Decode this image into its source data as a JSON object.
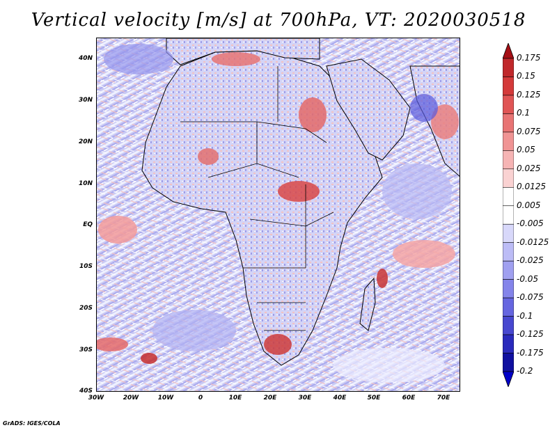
{
  "title": "Vertical velocity [m/s] at 700hPa, VT: 2020030518",
  "footer": "GrADS: IGES/COLA",
  "map": {
    "lat_labels": [
      "40N",
      "30N",
      "20N",
      "10N",
      "EQ",
      "10S",
      "20S",
      "30S",
      "40S"
    ],
    "lon_labels": [
      "30W",
      "20W",
      "10W",
      "0",
      "10E",
      "20E",
      "30E",
      "40E",
      "50E",
      "60E",
      "70E"
    ],
    "lat_range": [
      -40,
      45
    ],
    "lon_range": [
      -30,
      75
    ]
  },
  "colorbar": {
    "labels": [
      "0.175",
      "0.15",
      "0.125",
      "0.1",
      "0.075",
      "0.05",
      "0.025",
      "0.0125",
      "0.005",
      "-0.005",
      "-0.0125",
      "-0.025",
      "-0.05",
      "-0.075",
      "-0.1",
      "-0.125",
      "-0.175",
      "-0.2"
    ],
    "colors": [
      "#a50f15",
      "#c0282b",
      "#d43a3a",
      "#e05555",
      "#e87474",
      "#f09494",
      "#f6b4b4",
      "#fad2d2",
      "#ffffff",
      "#ffffff",
      "#d8d8fa",
      "#bcbcf6",
      "#a0a0f0",
      "#8484ea",
      "#6666e0",
      "#4848d0",
      "#2a2abc",
      "#1010a0",
      "#0000c8"
    ]
  }
}
